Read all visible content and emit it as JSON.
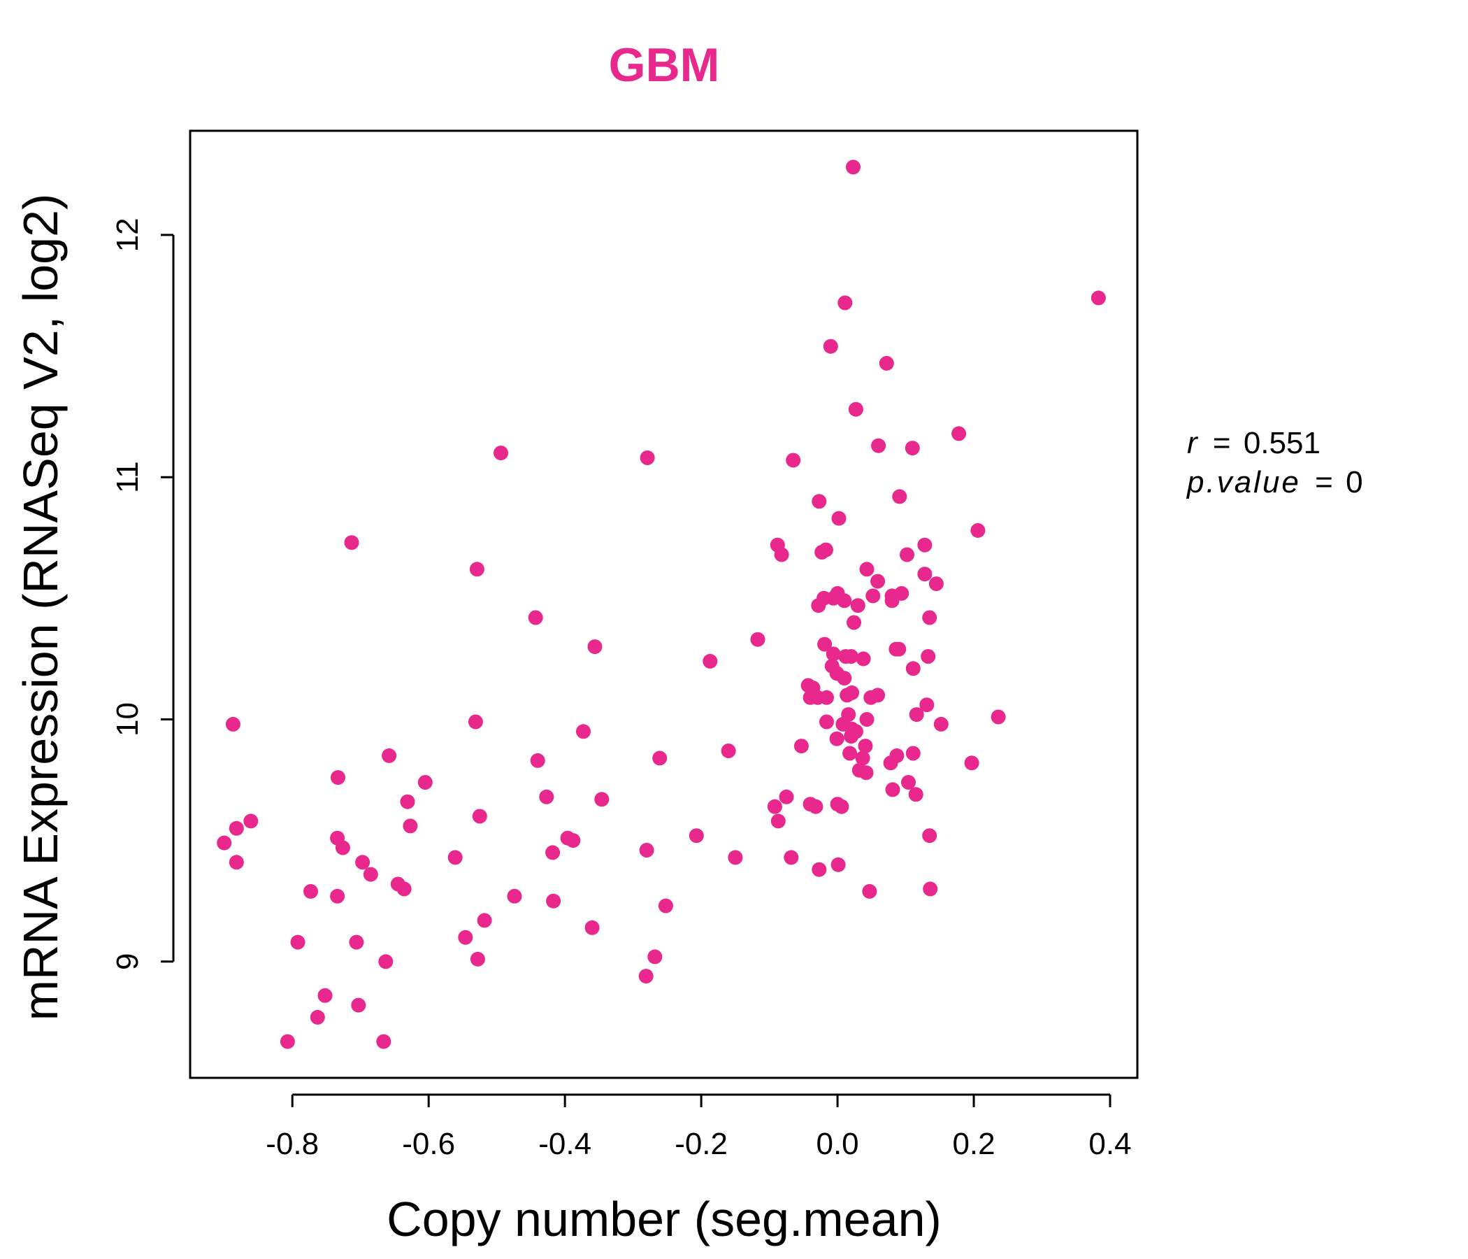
{
  "chart_data": {
    "type": "scatter",
    "title": "GBM",
    "xlabel": "Copy number (seg.mean)",
    "ylabel": "mRNA Expression (RNASeq V2, log2)",
    "xlim": [
      -0.95,
      0.44
    ],
    "ylim": [
      8.52,
      12.43
    ],
    "x_ticks": [
      -0.8,
      -0.6,
      -0.4,
      -0.2,
      0.0,
      0.2,
      0.4
    ],
    "x_tick_labels": [
      "-0.8",
      "-0.6",
      "-0.4",
      "-0.2",
      "0.0",
      "0.2",
      "0.4"
    ],
    "y_ticks": [
      9,
      10,
      11,
      12
    ],
    "y_tick_labels": [
      "9",
      "10",
      "11",
      "12"
    ],
    "grid": false,
    "legend": "none",
    "annotations": {
      "r_symbol": "r",
      "r_value": "0.551",
      "p_symbol": "p.value",
      "p_value": "0",
      "equals": "="
    },
    "points": [
      {
        "x": 0.023,
        "y": 12.28
      },
      {
        "x": 0.383,
        "y": 11.74
      },
      {
        "x": 0.011,
        "y": 11.72
      },
      {
        "x": -0.01,
        "y": 11.54
      },
      {
        "x": 0.072,
        "y": 11.47
      },
      {
        "x": 0.027,
        "y": 11.28
      },
      {
        "x": 0.178,
        "y": 11.18
      },
      {
        "x": 0.06,
        "y": 11.13
      },
      {
        "x": 0.11,
        "y": 11.12
      },
      {
        "x": -0.494,
        "y": 11.1
      },
      {
        "x": -0.279,
        "y": 11.08
      },
      {
        "x": -0.065,
        "y": 11.07
      },
      {
        "x": 0.091,
        "y": 10.92
      },
      {
        "x": -0.027,
        "y": 10.9
      },
      {
        "x": 0.002,
        "y": 10.83
      },
      {
        "x": 0.206,
        "y": 10.78
      },
      {
        "x": -0.713,
        "y": 10.73
      },
      {
        "x": -0.088,
        "y": 10.72
      },
      {
        "x": 0.128,
        "y": 10.72
      },
      {
        "x": -0.017,
        "y": 10.7
      },
      {
        "x": -0.023,
        "y": 10.69
      },
      {
        "x": -0.082,
        "y": 10.68
      },
      {
        "x": 0.102,
        "y": 10.68
      },
      {
        "x": -0.529,
        "y": 10.62
      },
      {
        "x": 0.043,
        "y": 10.62
      },
      {
        "x": 0.128,
        "y": 10.6
      },
      {
        "x": 0.059,
        "y": 10.57
      },
      {
        "x": 0.145,
        "y": 10.56
      },
      {
        "x": 0.094,
        "y": 10.52
      },
      {
        "x": 0.0,
        "y": 10.52
      },
      {
        "x": 0.08,
        "y": 10.51
      },
      {
        "x": 0.052,
        "y": 10.51
      },
      {
        "x": -0.02,
        "y": 10.5
      },
      {
        "x": -0.006,
        "y": 10.5
      },
      {
        "x": 0.01,
        "y": 10.49
      },
      {
        "x": 0.08,
        "y": 10.49
      },
      {
        "x": -0.028,
        "y": 10.47
      },
      {
        "x": 0.03,
        "y": 10.47
      },
      {
        "x": -0.443,
        "y": 10.42
      },
      {
        "x": 0.135,
        "y": 10.42
      },
      {
        "x": 0.024,
        "y": 10.4
      },
      {
        "x": -0.117,
        "y": 10.33
      },
      {
        "x": -0.019,
        "y": 10.31
      },
      {
        "x": -0.356,
        "y": 10.3
      },
      {
        "x": 0.09,
        "y": 10.29
      },
      {
        "x": 0.086,
        "y": 10.29
      },
      {
        "x": -0.006,
        "y": 10.27
      },
      {
        "x": 0.012,
        "y": 10.26
      },
      {
        "x": 0.133,
        "y": 10.26
      },
      {
        "x": 0.02,
        "y": 10.26
      },
      {
        "x": 0.038,
        "y": 10.25
      },
      {
        "x": -0.187,
        "y": 10.24
      },
      {
        "x": -0.008,
        "y": 10.22
      },
      {
        "x": 0.111,
        "y": 10.21
      },
      {
        "x": -0.001,
        "y": 10.19
      },
      {
        "x": 0.01,
        "y": 10.17
      },
      {
        "x": -0.043,
        "y": 10.14
      },
      {
        "x": -0.036,
        "y": 10.13
      },
      {
        "x": -0.037,
        "y": 10.11
      },
      {
        "x": 0.021,
        "y": 10.11
      },
      {
        "x": 0.014,
        "y": 10.1
      },
      {
        "x": 0.059,
        "y": 10.1
      },
      {
        "x": 0.049,
        "y": 10.09
      },
      {
        "x": -0.04,
        "y": 10.09
      },
      {
        "x": -0.016,
        "y": 10.09
      },
      {
        "x": 0.131,
        "y": 10.06
      },
      {
        "x": -0.029,
        "y": 10.09
      },
      {
        "x": 0.116,
        "y": 10.02
      },
      {
        "x": 0.016,
        "y": 10.02
      },
      {
        "x": 0.236,
        "y": 10.01
      },
      {
        "x": 0.043,
        "y": 10.0
      },
      {
        "x": -0.531,
        "y": 9.99
      },
      {
        "x": -0.887,
        "y": 9.98
      },
      {
        "x": -0.016,
        "y": 9.99
      },
      {
        "x": 0.008,
        "y": 9.98
      },
      {
        "x": 0.152,
        "y": 9.98
      },
      {
        "x": 0.021,
        "y": 9.96
      },
      {
        "x": 0.027,
        "y": 9.95
      },
      {
        "x": -0.373,
        "y": 9.95
      },
      {
        "x": 0.02,
        "y": 9.93
      },
      {
        "x": -0.001,
        "y": 9.92
      },
      {
        "x": -0.053,
        "y": 9.89
      },
      {
        "x": 0.041,
        "y": 9.89
      },
      {
        "x": 0.111,
        "y": 9.86
      },
      {
        "x": -0.16,
        "y": 9.87
      },
      {
        "x": 0.018,
        "y": 9.86
      },
      {
        "x": 0.087,
        "y": 9.85
      },
      {
        "x": 0.037,
        "y": 9.84
      },
      {
        "x": -0.658,
        "y": 9.85
      },
      {
        "x": -0.261,
        "y": 9.84
      },
      {
        "x": -0.44,
        "y": 9.83
      },
      {
        "x": 0.197,
        "y": 9.82
      },
      {
        "x": 0.078,
        "y": 9.82
      },
      {
        "x": 0.032,
        "y": 9.79
      },
      {
        "x": 0.042,
        "y": 9.78
      },
      {
        "x": -0.733,
        "y": 9.76
      },
      {
        "x": -0.605,
        "y": 9.74
      },
      {
        "x": 0.104,
        "y": 9.74
      },
      {
        "x": 0.081,
        "y": 9.71
      },
      {
        "x": 0.115,
        "y": 9.69
      },
      {
        "x": -0.075,
        "y": 9.68
      },
      {
        "x": -0.427,
        "y": 9.68
      },
      {
        "x": -0.346,
        "y": 9.67
      },
      {
        "x": -0.631,
        "y": 9.66
      },
      {
        "x": -0.04,
        "y": 9.65
      },
      {
        "x": 0.0,
        "y": 9.65
      },
      {
        "x": -0.032,
        "y": 9.64
      },
      {
        "x": 0.006,
        "y": 9.64
      },
      {
        "x": -0.092,
        "y": 9.64
      },
      {
        "x": -0.525,
        "y": 9.6
      },
      {
        "x": -0.861,
        "y": 9.58
      },
      {
        "x": -0.087,
        "y": 9.58
      },
      {
        "x": -0.627,
        "y": 9.56
      },
      {
        "x": -0.882,
        "y": 9.55
      },
      {
        "x": -0.207,
        "y": 9.52
      },
      {
        "x": 0.135,
        "y": 9.52
      },
      {
        "x": -0.396,
        "y": 9.51
      },
      {
        "x": -0.734,
        "y": 9.51
      },
      {
        "x": -0.388,
        "y": 9.5
      },
      {
        "x": -0.9,
        "y": 9.49
      },
      {
        "x": -0.726,
        "y": 9.47
      },
      {
        "x": -0.28,
        "y": 9.46
      },
      {
        "x": -0.418,
        "y": 9.45
      },
      {
        "x": -0.561,
        "y": 9.43
      },
      {
        "x": -0.15,
        "y": 9.43
      },
      {
        "x": -0.068,
        "y": 9.43
      },
      {
        "x": -0.697,
        "y": 9.41
      },
      {
        "x": -0.882,
        "y": 9.41
      },
      {
        "x": 0.001,
        "y": 9.4
      },
      {
        "x": -0.027,
        "y": 9.38
      },
      {
        "x": -0.685,
        "y": 9.36
      },
      {
        "x": -0.645,
        "y": 9.32
      },
      {
        "x": -0.636,
        "y": 9.3
      },
      {
        "x": 0.047,
        "y": 9.29
      },
      {
        "x": 0.136,
        "y": 9.3
      },
      {
        "x": -0.773,
        "y": 9.29
      },
      {
        "x": -0.734,
        "y": 9.27
      },
      {
        "x": -0.474,
        "y": 9.27
      },
      {
        "x": -0.417,
        "y": 9.25
      },
      {
        "x": -0.252,
        "y": 9.23
      },
      {
        "x": -0.518,
        "y": 9.17
      },
      {
        "x": -0.36,
        "y": 9.14
      },
      {
        "x": -0.546,
        "y": 9.1
      },
      {
        "x": -0.792,
        "y": 9.08
      },
      {
        "x": -0.706,
        "y": 9.08
      },
      {
        "x": -0.268,
        "y": 9.02
      },
      {
        "x": -0.528,
        "y": 9.01
      },
      {
        "x": -0.663,
        "y": 9.0
      },
      {
        "x": -0.281,
        "y": 8.94
      },
      {
        "x": -0.752,
        "y": 8.86
      },
      {
        "x": -0.703,
        "y": 8.82
      },
      {
        "x": -0.763,
        "y": 8.77
      },
      {
        "x": -0.807,
        "y": 8.67
      },
      {
        "x": -0.666,
        "y": 8.67
      }
    ]
  },
  "colors": {
    "point": "#e8288c",
    "title": "#e8288c",
    "axis": "#000000",
    "background": "#ffffff"
  }
}
